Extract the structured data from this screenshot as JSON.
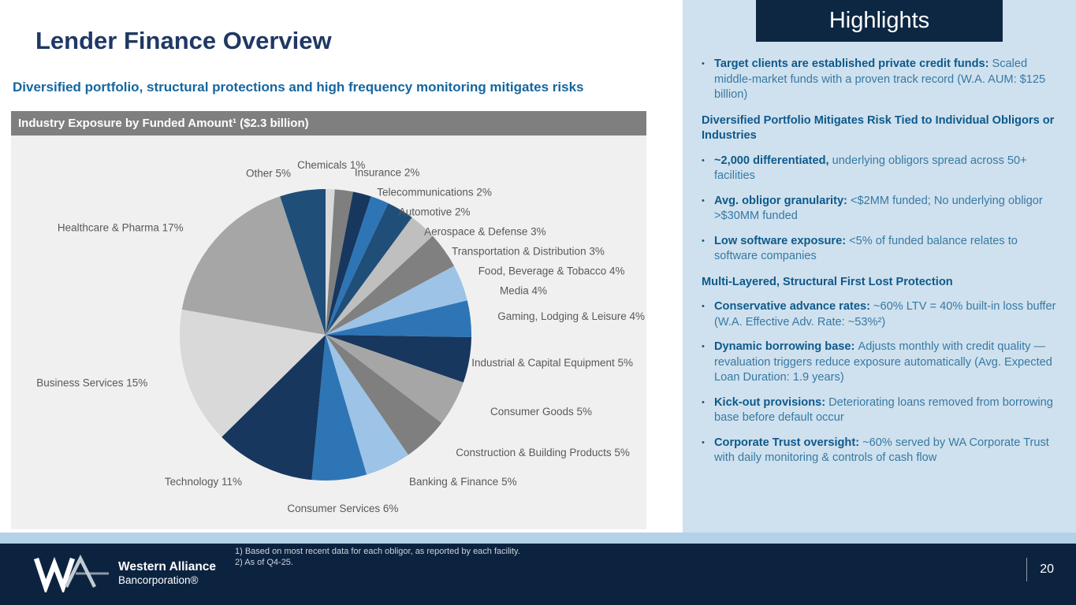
{
  "slide": {
    "title": "Lender Finance Overview",
    "subtitle": "Diversified portfolio, structural protections and high frequency monitoring mitigates risks",
    "chart_header": "Industry Exposure by Funded Amount¹ ($2.3 billion)"
  },
  "chart_data": {
    "type": "pie",
    "title": "Industry Exposure by Funded Amount ($2.3 billion)",
    "total_funded": "$2.3 billion",
    "unit": "%",
    "start_angle_deg": 0,
    "direction": "clockwise",
    "label_color": "#595959",
    "slices": [
      {
        "label": "Chemicals",
        "value": 1,
        "color": "#d9d9d9"
      },
      {
        "label": "Insurance",
        "value": 2,
        "color": "#7f7f7f"
      },
      {
        "label": "Telecommunications",
        "value": 2,
        "color": "#17375e"
      },
      {
        "label": "Automotive",
        "value": 2,
        "color": "#2e75b6"
      },
      {
        "label": "Aerospace & Defense",
        "value": 3,
        "color": "#1f4e79"
      },
      {
        "label": "Transportation & Distribution",
        "value": 3,
        "color": "#bfbfbf"
      },
      {
        "label": "Food, Beverage & Tobacco",
        "value": 4,
        "color": "#808080"
      },
      {
        "label": "Media",
        "value": 4,
        "color": "#9dc3e6"
      },
      {
        "label": "Gaming, Lodging & Leisure",
        "value": 4,
        "color": "#2e75b6"
      },
      {
        "label": "Industrial & Capital Equipment",
        "value": 5,
        "color": "#17375e"
      },
      {
        "label": "Consumer Goods",
        "value": 5,
        "color": "#a6a6a6"
      },
      {
        "label": "Construction & Building Products",
        "value": 5,
        "color": "#7f7f7f"
      },
      {
        "label": "Banking & Finance",
        "value": 5,
        "color": "#9dc3e6"
      },
      {
        "label": "Consumer Services",
        "value": 6,
        "color": "#2e75b6"
      },
      {
        "label": "Technology",
        "value": 11,
        "color": "#17375e"
      },
      {
        "label": "Business Services",
        "value": 15,
        "color": "#d9d9d9"
      },
      {
        "label": "Healthcare & Pharma",
        "value": 17,
        "color": "#a6a6a6"
      },
      {
        "label": "Other",
        "value": 5,
        "color": "#1f4e79"
      }
    ]
  },
  "highlights": {
    "header": "Highlights",
    "blocks": [
      {
        "type": "bullet",
        "bold": "Target clients are established private credit funds:",
        "text": "Scaled middle-market funds with a proven track record (W.A. AUM: $125 billion)"
      },
      {
        "type": "heading",
        "text": "Diversified Portfolio Mitigates Risk Tied to Individual Obligors or Industries"
      },
      {
        "type": "bullet",
        "bold": "~2,000 differentiated,",
        "text": "underlying obligors spread across 50+ facilities"
      },
      {
        "type": "bullet",
        "bold": "Avg. obligor granularity:",
        "text": "<$2MM funded; No underlying obligor >$30MM funded"
      },
      {
        "type": "bullet",
        "bold": "Low software exposure:",
        "text": "<5% of funded balance relates to software companies"
      },
      {
        "type": "heading",
        "text": "Multi-Layered, Structural First Lost Protection"
      },
      {
        "type": "bullet",
        "bold": "Conservative advance rates:",
        "text": "~60% LTV = 40% built-in loss buffer (W.A. Effective Adv. Rate: ~53%²)"
      },
      {
        "type": "bullet",
        "bold": "Dynamic borrowing base:",
        "text": "Adjusts monthly with credit quality — revaluation triggers reduce exposure automatically (Avg. Expected Loan Duration: 1.9 years)"
      },
      {
        "type": "bullet",
        "bold": "Kick-out provisions:",
        "text": "Deteriorating loans removed from borrowing base before default occur"
      },
      {
        "type": "bullet",
        "bold": "Corporate Trust oversight:",
        "text": "~60% served by WA Corporate Trust with daily monitoring & controls of cash flow"
      }
    ]
  },
  "footer": {
    "footnotes": [
      "1) Based on most recent data for each obligor, as reported by each facility.",
      "2) As of Q4-25."
    ],
    "logo_line1": "Western Alliance",
    "logo_line2": "Bancorporation®",
    "page_number": "20"
  }
}
